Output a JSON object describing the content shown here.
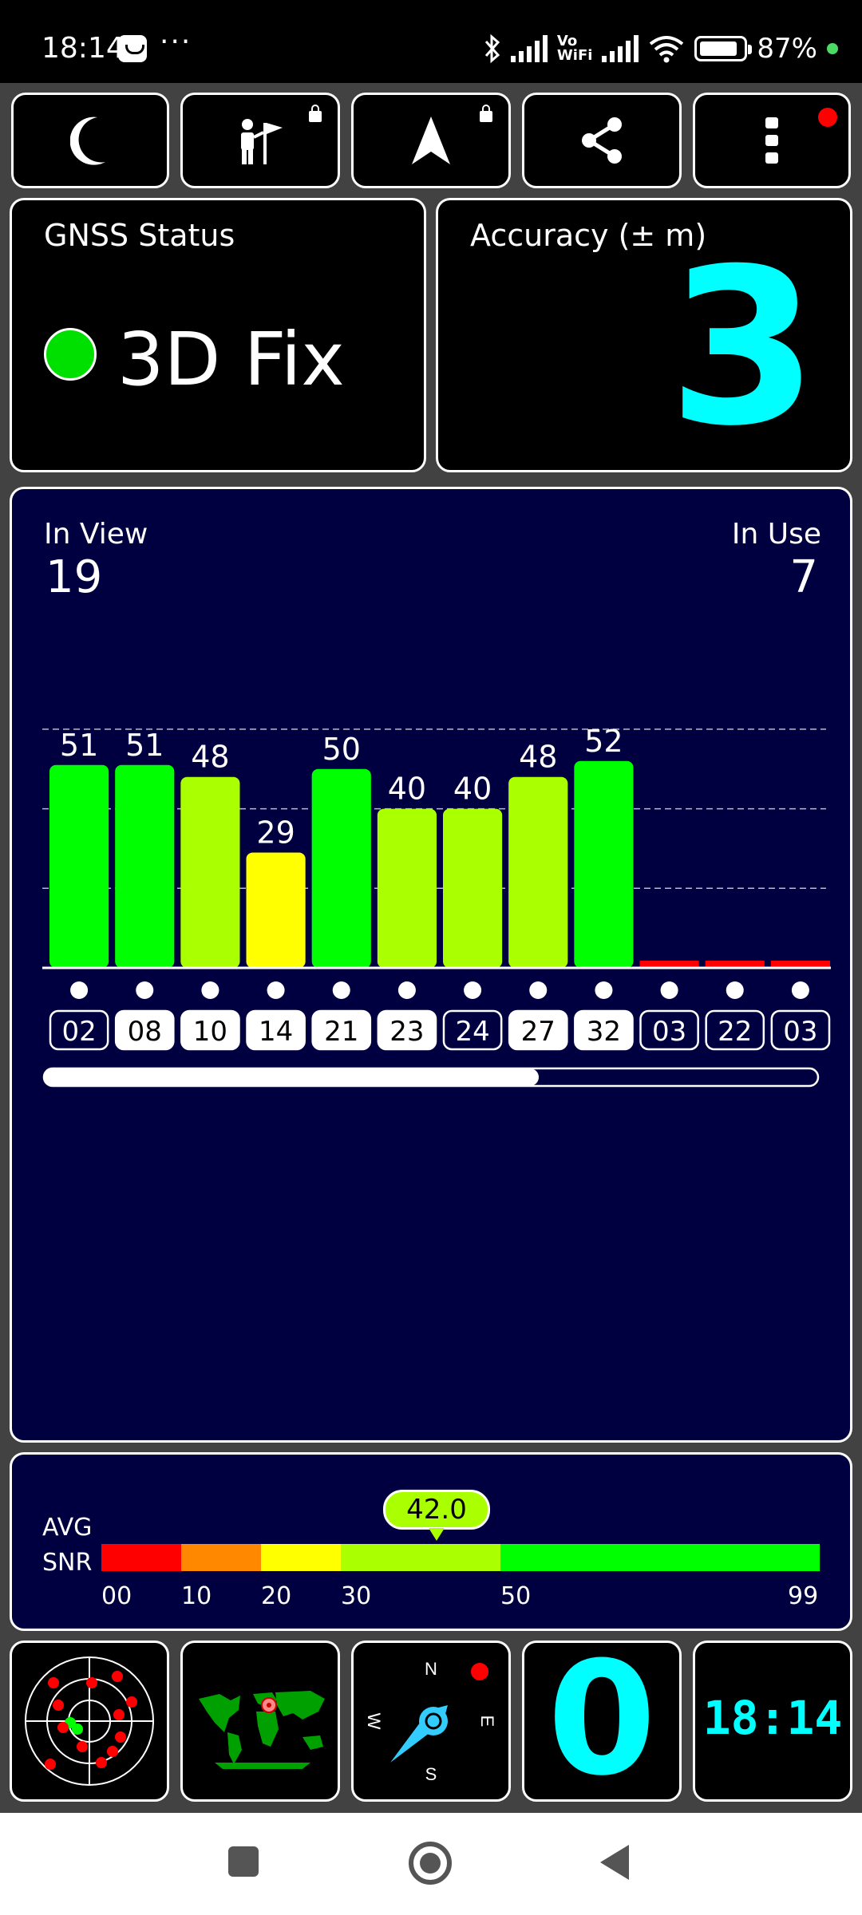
{
  "status_bar": {
    "time": "18:14",
    "overflow": "···",
    "vowifi": "Vo\nWiFi",
    "battery": "87%",
    "battery_level": 0.87,
    "icons": [
      "notification-icon",
      "bluetooth-icon",
      "signal-icon",
      "vowifi-icon",
      "wifi-icon",
      "battery-icon"
    ]
  },
  "toolbar": {
    "buttons": [
      "moon-icon",
      "map-person-flag-icon",
      "navigation-arrow-icon",
      "share-icon",
      "more-vert-icon"
    ]
  },
  "gnss_status": {
    "title": "GNSS Status",
    "fix": "3D Fix",
    "fix_color": "#00e000"
  },
  "accuracy": {
    "title": "Accuracy (± m)",
    "value": "3"
  },
  "satellites": {
    "in_view_label": "In View",
    "in_view": "19",
    "in_use_label": "In Use",
    "in_use": "7"
  },
  "chart_data": {
    "type": "bar",
    "categories": [
      "02",
      "08",
      "10",
      "14",
      "21",
      "23",
      "24",
      "27",
      "32",
      "03",
      "22",
      "03"
    ],
    "values": [
      51,
      51,
      48,
      29,
      50,
      40,
      40,
      48,
      52,
      0,
      0,
      0
    ],
    "labels": [
      "51",
      "51",
      "48",
      "29",
      "50",
      "40",
      "40",
      "48",
      "52",
      "",
      "",
      ""
    ],
    "in_use": [
      false,
      true,
      true,
      true,
      true,
      true,
      false,
      true,
      true,
      false,
      false,
      false
    ],
    "ylim": [
      0,
      65
    ],
    "grid": true,
    "colors": {
      "strong": "#00ff00",
      "good": "#aaff00",
      "fair": "#ffff00",
      "none": "#ff0000"
    }
  },
  "avg_snr": {
    "label_line1": "AVG",
    "label_line2": "SNR",
    "value": "42.0",
    "value_num": 42.0,
    "scale_ticks": [
      "00",
      "10",
      "20",
      "30",
      "50",
      "99"
    ],
    "scale_colors": [
      "#ff0000",
      "#ff8800",
      "#ffff00",
      "#aaff00",
      "#00ff00"
    ]
  },
  "bottom_tiles": {
    "radar": "satellite-skyview-icon",
    "map": "world-map-icon",
    "compass": {
      "n": "N",
      "e": "E",
      "s": "S",
      "w": "W"
    },
    "speed": "0",
    "clock": "18:14"
  }
}
